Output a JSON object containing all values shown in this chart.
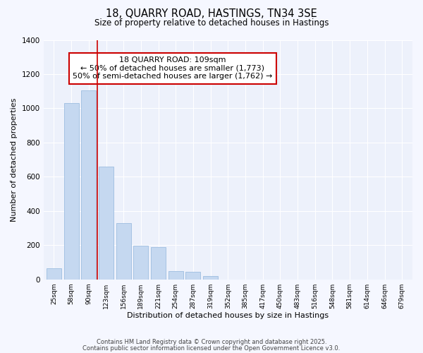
{
  "title": "18, QUARRY ROAD, HASTINGS, TN34 3SE",
  "subtitle": "Size of property relative to detached houses in Hastings",
  "xlabel": "Distribution of detached houses by size in Hastings",
  "ylabel": "Number of detached properties",
  "categories": [
    "25sqm",
    "58sqm",
    "90sqm",
    "123sqm",
    "156sqm",
    "189sqm",
    "221sqm",
    "254sqm",
    "287sqm",
    "319sqm",
    "352sqm",
    "385sqm",
    "417sqm",
    "450sqm",
    "483sqm",
    "516sqm",
    "548sqm",
    "581sqm",
    "614sqm",
    "646sqm",
    "679sqm"
  ],
  "values": [
    65,
    1030,
    1105,
    660,
    330,
    195,
    190,
    50,
    45,
    20,
    0,
    0,
    0,
    0,
    0,
    0,
    0,
    0,
    0,
    0,
    0
  ],
  "bar_color": "#c5d8f0",
  "bar_edge_color": "#9dbde0",
  "vline_x": 2.5,
  "vline_color": "#cc0000",
  "annotation_text": "18 QUARRY ROAD: 109sqm\n← 50% of detached houses are smaller (1,773)\n50% of semi-detached houses are larger (1,762) →",
  "annotation_box_color": "#ffffff",
  "annotation_box_edge": "#cc0000",
  "footer1": "Contains HM Land Registry data © Crown copyright and database right 2025.",
  "footer2": "Contains public sector information licensed under the Open Government Licence v3.0.",
  "bg_color": "#f5f7ff",
  "plot_bg_color": "#edf1fb",
  "ylim": [
    0,
    1400
  ],
  "yticks": [
    0,
    200,
    400,
    600,
    800,
    1000,
    1200,
    1400
  ]
}
